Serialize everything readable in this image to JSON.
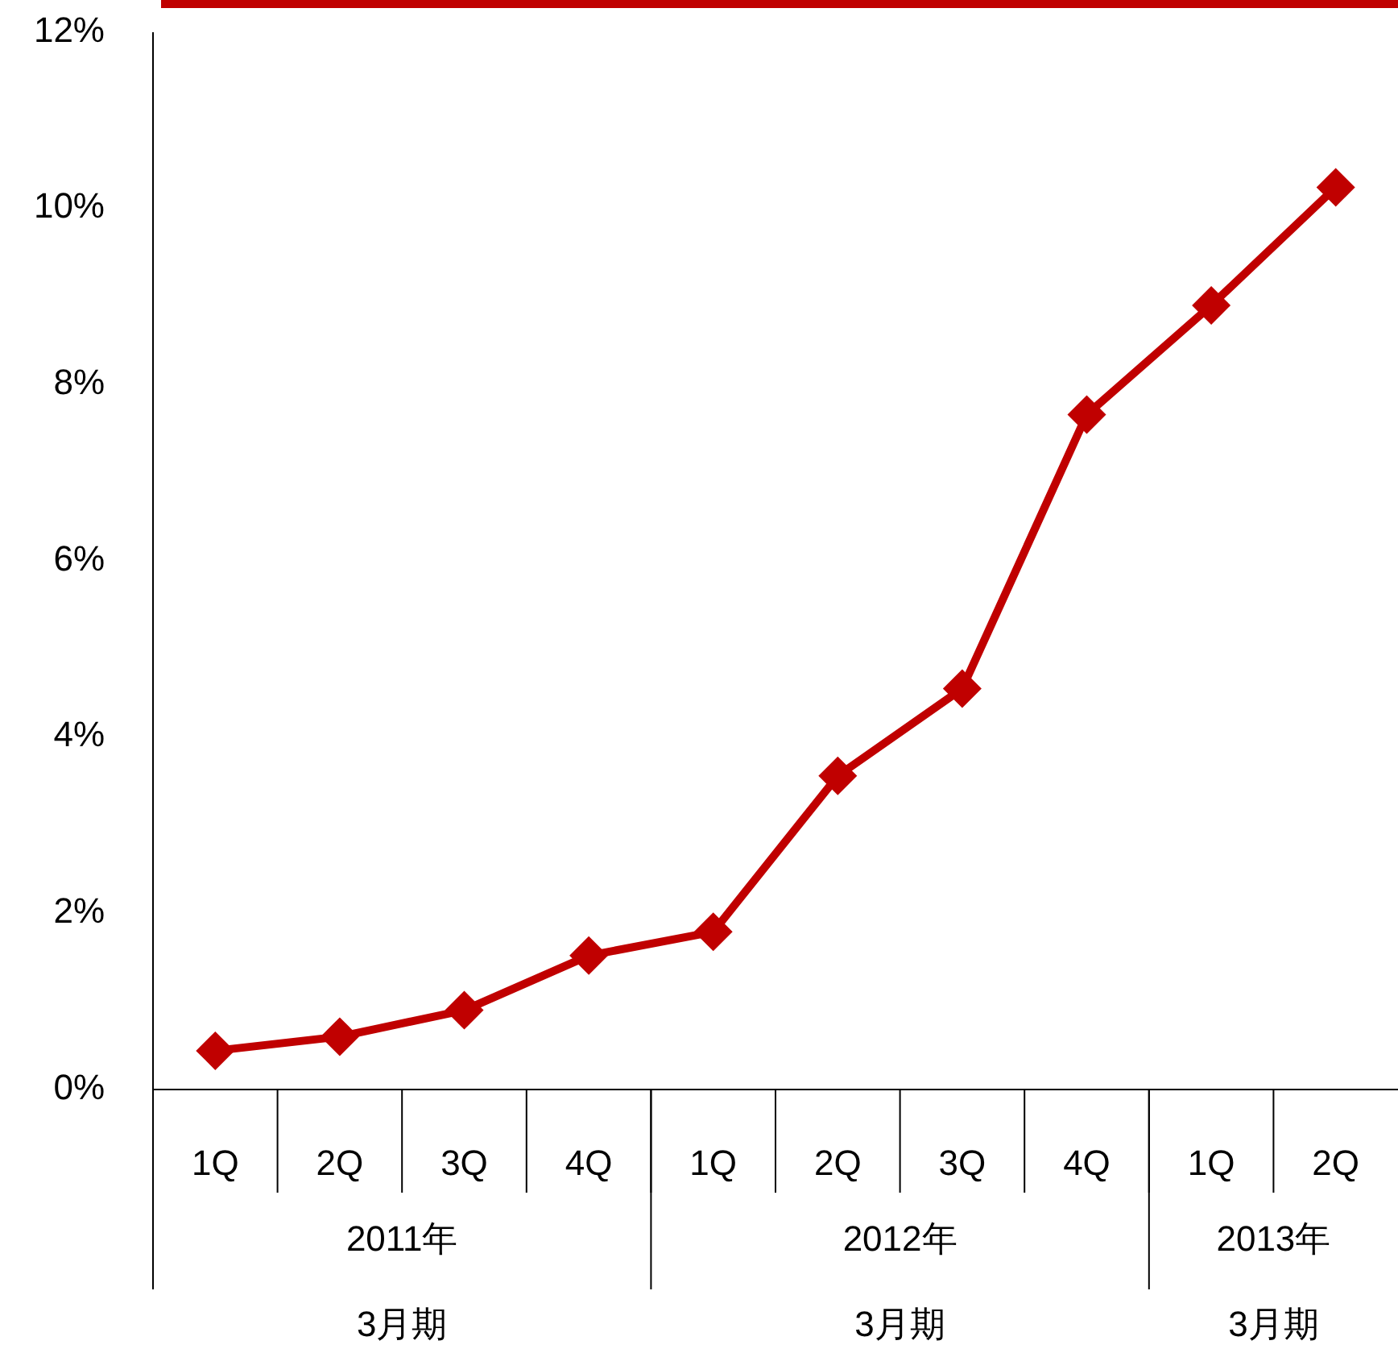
{
  "chart_data": {
    "type": "line",
    "categories": [
      "1Q",
      "2Q",
      "3Q",
      "4Q",
      "1Q",
      "2Q",
      "3Q",
      "4Q",
      "1Q",
      "2Q"
    ],
    "series": [
      {
        "color": "#c00000",
        "values": [
          0.44,
          0.6,
          0.9,
          1.52,
          1.79,
          3.56,
          4.55,
          7.66,
          8.9,
          10.24
        ]
      }
    ],
    "ylim": [
      0,
      12
    ],
    "yticks": [
      {
        "value": 0,
        "label": "0%"
      },
      {
        "value": 2,
        "label": "2%"
      },
      {
        "value": 4,
        "label": "4%"
      },
      {
        "value": 6,
        "label": "6%"
      },
      {
        "value": 8,
        "label": "8%"
      },
      {
        "value": 10,
        "label": "10%"
      },
      {
        "value": 12,
        "label": "12%"
      }
    ],
    "marker": "diamond",
    "line_style": "solid",
    "annotations": [
      "2011年",
      "2012年",
      "2013年",
      "3月期",
      "3月期",
      "3月期"
    ]
  }
}
